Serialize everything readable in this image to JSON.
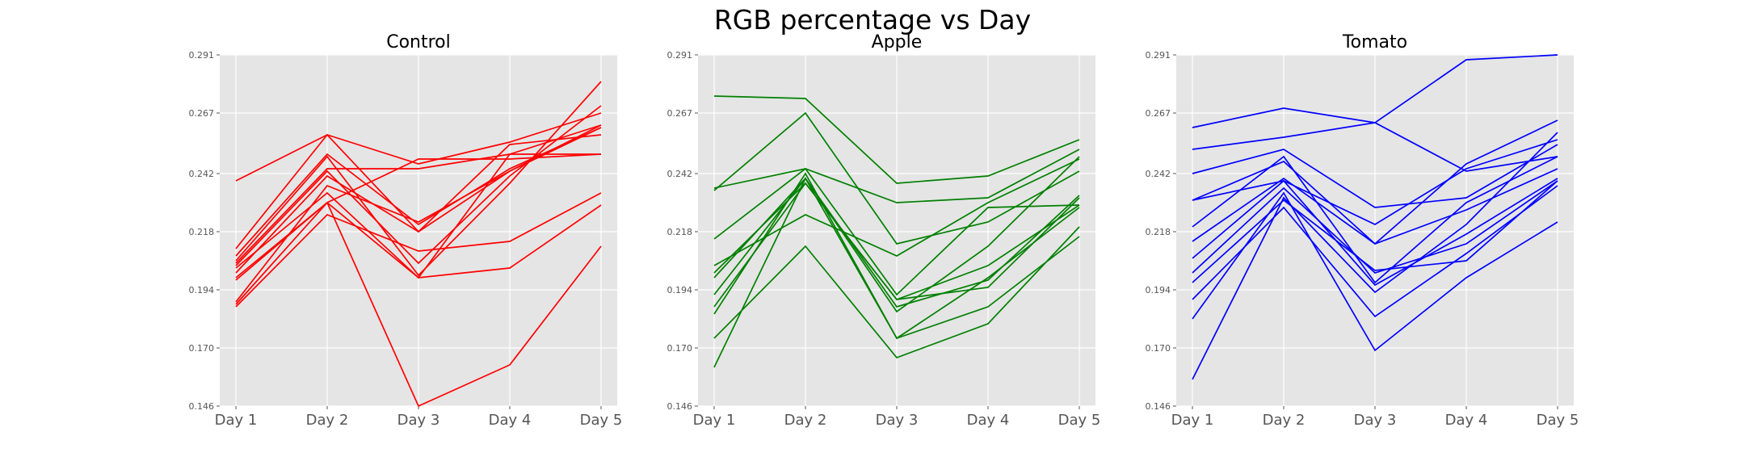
{
  "figure": {
    "title": "RGB percentage vs Day"
  },
  "chart_data": [
    {
      "type": "line",
      "title": "Control",
      "color": "#ff0000",
      "x": [
        "Day 1",
        "Day 2",
        "Day 3",
        "Day 4",
        "Day 5"
      ],
      "ylim": [
        0.146,
        0.291
      ],
      "yticks": [
        "0.146",
        "0.170",
        "0.194",
        "0.218",
        "0.242",
        "0.267",
        "0.291"
      ],
      "grid": true,
      "series": [
        {
          "values": [
            0.239,
            0.258,
            0.246,
            0.255,
            0.267
          ]
        },
        {
          "values": [
            0.211,
            0.258,
            0.218,
            0.243,
            0.262
          ]
        },
        {
          "values": [
            0.208,
            0.25,
            0.221,
            0.244,
            0.261
          ]
        },
        {
          "values": [
            0.206,
            0.249,
            0.2,
            0.238,
            0.28
          ]
        },
        {
          "values": [
            0.205,
            0.244,
            0.244,
            0.25,
            0.262
          ]
        },
        {
          "values": [
            0.204,
            0.243,
            0.205,
            0.241,
            0.27
          ]
        },
        {
          "values": [
            0.203,
            0.234,
            0.199,
            0.25,
            0.25
          ]
        },
        {
          "values": [
            0.201,
            0.241,
            0.218,
            0.254,
            0.258
          ]
        },
        {
          "values": [
            0.199,
            0.23,
            0.248,
            0.248,
            0.25
          ]
        },
        {
          "values": [
            0.198,
            0.23,
            0.146,
            0.163,
            0.212
          ]
        },
        {
          "values": [
            0.188,
            0.23,
            0.199,
            0.203,
            0.229
          ]
        },
        {
          "values": [
            0.187,
            0.225,
            0.21,
            0.214,
            0.234
          ]
        },
        {
          "values": [
            0.189,
            0.237,
            0.222,
            0.243,
            0.261
          ]
        }
      ]
    },
    {
      "type": "line",
      "title": "Apple",
      "color": "#008000",
      "x": [
        "Day 1",
        "Day 2",
        "Day 3",
        "Day 4",
        "Day 5"
      ],
      "ylim": [
        0.146,
        0.291
      ],
      "yticks": [
        "0.146",
        "0.170",
        "0.194",
        "0.218",
        "0.242",
        "0.267",
        "0.291"
      ],
      "grid": true,
      "series": [
        {
          "values": [
            0.274,
            0.273,
            0.238,
            0.241,
            0.256
          ]
        },
        {
          "values": [
            0.236,
            0.244,
            0.23,
            0.232,
            0.252
          ]
        },
        {
          "values": [
            0.235,
            0.267,
            0.213,
            0.222,
            0.243
          ]
        },
        {
          "values": [
            0.215,
            0.244,
            0.192,
            0.228,
            0.229
          ]
        },
        {
          "values": [
            0.204,
            0.225,
            0.208,
            0.23,
            0.248
          ]
        },
        {
          "values": [
            0.201,
            0.238,
            0.19,
            0.195,
            0.232
          ]
        },
        {
          "values": [
            0.199,
            0.24,
            0.185,
            0.212,
            0.249
          ]
        },
        {
          "values": [
            0.192,
            0.24,
            0.187,
            0.198,
            0.233
          ]
        },
        {
          "values": [
            0.187,
            0.238,
            0.19,
            0.204,
            0.229
          ]
        },
        {
          "values": [
            0.184,
            0.242,
            0.174,
            0.187,
            0.216
          ]
        },
        {
          "values": [
            0.174,
            0.212,
            0.166,
            0.18,
            0.22
          ]
        },
        {
          "values": [
            0.162,
            0.24,
            0.174,
            0.199,
            0.228
          ]
        }
      ]
    },
    {
      "type": "line",
      "title": "Tomato",
      "color": "#0000ff",
      "x": [
        "Day 1",
        "Day 2",
        "Day 3",
        "Day 4",
        "Day 5"
      ],
      "ylim": [
        0.146,
        0.291
      ],
      "yticks": [
        "0.146",
        "0.170",
        "0.194",
        "0.218",
        "0.242",
        "0.267",
        "0.291"
      ],
      "grid": true,
      "series": [
        {
          "values": [
            0.252,
            0.257,
            0.263,
            0.289,
            0.291
          ]
        },
        {
          "values": [
            0.261,
            0.269,
            0.263,
            0.243,
            0.249
          ]
        },
        {
          "values": [
            0.242,
            0.252,
            0.228,
            0.232,
            0.254
          ]
        },
        {
          "values": [
            0.231,
            0.239,
            0.221,
            0.244,
            0.256
          ]
        },
        {
          "values": [
            0.231,
            0.247,
            0.213,
            0.246,
            0.264
          ]
        },
        {
          "values": [
            0.22,
            0.249,
            0.197,
            0.23,
            0.249
          ]
        },
        {
          "values": [
            0.214,
            0.24,
            0.213,
            0.227,
            0.244
          ]
        },
        {
          "values": [
            0.207,
            0.239,
            0.196,
            0.217,
            0.24
          ]
        },
        {
          "values": [
            0.201,
            0.236,
            0.201,
            0.213,
            0.239
          ]
        },
        {
          "values": [
            0.197,
            0.231,
            0.202,
            0.206,
            0.239
          ]
        },
        {
          "values": [
            0.19,
            0.228,
            0.183,
            0.209,
            0.237
          ]
        },
        {
          "values": [
            0.182,
            0.234,
            0.169,
            0.199,
            0.222
          ]
        },
        {
          "values": [
            0.157,
            0.232,
            0.193,
            0.221,
            0.259
          ]
        }
      ]
    }
  ]
}
